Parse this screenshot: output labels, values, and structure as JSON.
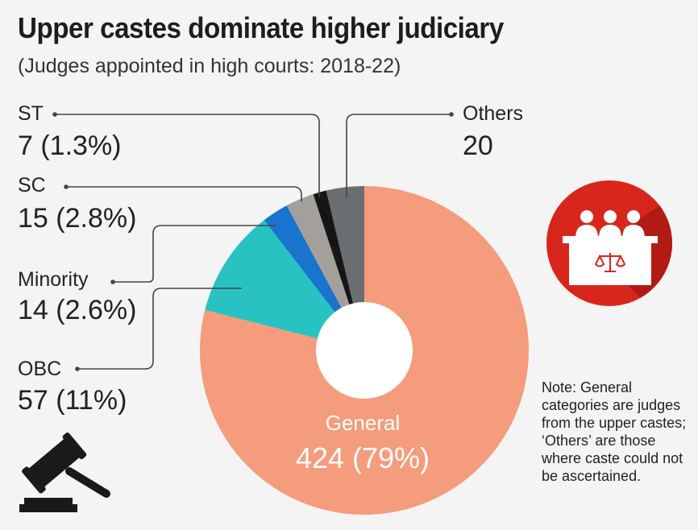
{
  "title": "Upper castes dominate higher judiciary",
  "subtitle": "(Judges appointed in high courts: 2018-22)",
  "chart_data": {
    "type": "pie",
    "variant": "donut",
    "title": "Upper castes dominate higher judiciary",
    "subtitle": "(Judges appointed in high courts: 2018-22)",
    "slices": [
      {
        "label": "General",
        "value": 424,
        "pct_text": "79%",
        "color": "#f49c7c"
      },
      {
        "label": "OBC",
        "value": 57,
        "pct_text": "11%",
        "color": "#29c2c2"
      },
      {
        "label": "Minority",
        "value": 14,
        "pct_text": "2.6%",
        "color": "#1874cd"
      },
      {
        "label": "SC",
        "value": 15,
        "pct_text": "2.8%",
        "color": "#a3a09b"
      },
      {
        "label": "ST",
        "value": 7,
        "pct_text": "1.3%",
        "color": "#161616"
      },
      {
        "label": "Others",
        "value": 20,
        "pct_text": "",
        "color": "#6b6e70"
      }
    ]
  },
  "labels": {
    "st_name": "ST",
    "st_value": "7 (1.3%)",
    "sc_name": "SC",
    "sc_value": "15 (2.8%)",
    "minority_name": "Minority",
    "minority_value": "14 (2.6%)",
    "obc_name": "OBC",
    "obc_value": "57 (11%)",
    "others_name": "Others",
    "others_value": "20",
    "general_name": "General",
    "general_value": "424 (79%)"
  },
  "note": "Note: General categories are judges from the upper castes; ‘Others’ are those where caste could not be ascertained.",
  "icons": {
    "court": "courtroom-icon",
    "gavel": "gavel-icon"
  },
  "colors": {
    "badge": "#d9261c",
    "general": "#f49c7c",
    "obc": "#29c2c2",
    "minority": "#1874cd",
    "sc": "#a3a09b",
    "st": "#161616",
    "others": "#6b6e70"
  }
}
